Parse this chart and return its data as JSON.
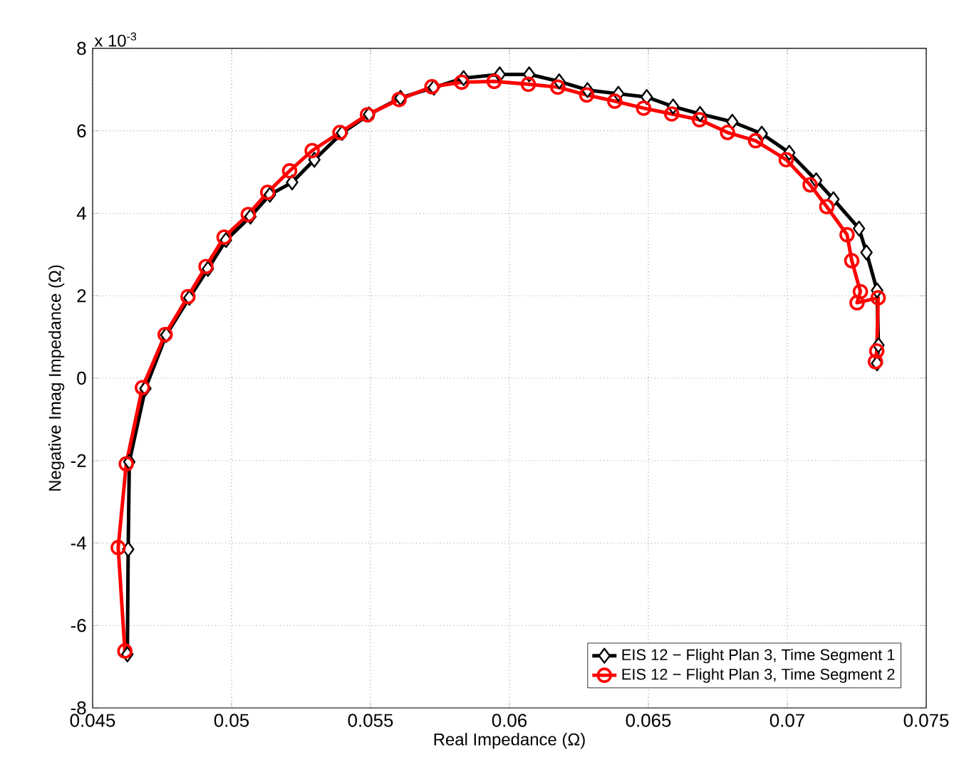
{
  "chart_data": {
    "type": "line",
    "xlabel": "Real Impedance (Ω)",
    "ylabel": "Negative Imag Impedance (Ω)",
    "annotations": [
      "x 10$^{-3}$"
    ],
    "xlim": [
      0.045,
      0.075
    ],
    "ylim": [
      -8,
      8
    ],
    "xticks": [
      0.045,
      0.05,
      0.055,
      0.06,
      0.065,
      0.07,
      0.075
    ],
    "yticks": [
      -8,
      -6,
      -4,
      -2,
      0,
      2,
      4,
      6,
      8
    ],
    "grid": true,
    "legend": "bottom right",
    "line_style": "solid",
    "series": [
      {
        "name": "EIS 12 − Flight Plan 3, Time Segment 1",
        "color": "#000000",
        "marker": "diamond",
        "x": [
          0.04625,
          0.04628,
          0.04632,
          0.0469,
          0.04765,
          0.04848,
          0.04915,
          0.0498,
          0.05068,
          0.05138,
          0.05218,
          0.05298,
          0.05398,
          0.05495,
          0.05608,
          0.05728,
          0.05835,
          0.05965,
          0.06071,
          0.06179,
          0.06281,
          0.06392,
          0.06494,
          0.06589,
          0.06686,
          0.06802,
          0.06908,
          0.07007,
          0.07104,
          0.07166,
          0.07258,
          0.07285,
          0.07323,
          0.07328,
          0.07323
        ],
        "values": [
          -6.7,
          -4.15,
          -2.03,
          -0.25,
          1.05,
          1.95,
          2.65,
          3.35,
          3.92,
          4.45,
          4.75,
          5.3,
          5.95,
          6.4,
          6.8,
          7.05,
          7.28,
          7.37,
          7.37,
          7.2,
          6.99,
          6.9,
          6.82,
          6.59,
          6.41,
          6.22,
          5.93,
          5.47,
          4.8,
          4.34,
          3.63,
          3.05,
          2.13,
          0.8,
          0.36
        ]
      },
      {
        "name": "EIS 12 − Flight Plan 3, Time Segment 2",
        "color": "#ff0000",
        "marker": "circle",
        "x": [
          0.04616,
          0.04592,
          0.04621,
          0.04679,
          0.04761,
          0.04843,
          0.04908,
          0.04973,
          0.0506,
          0.0513,
          0.05209,
          0.0529,
          0.0539,
          0.05489,
          0.05603,
          0.05721,
          0.05828,
          0.05945,
          0.06068,
          0.06174,
          0.06278,
          0.06379,
          0.06483,
          0.06584,
          0.06684,
          0.06785,
          0.06886,
          0.06996,
          0.07082,
          0.07142,
          0.07215,
          0.07232,
          0.07263,
          0.07251,
          0.07327,
          0.07322,
          0.07317
        ],
        "values": [
          -6.62,
          -4.11,
          -2.08,
          -0.23,
          1.06,
          1.98,
          2.71,
          3.42,
          3.97,
          4.51,
          5.03,
          5.52,
          5.96,
          6.39,
          6.76,
          7.07,
          7.18,
          7.2,
          7.13,
          7.06,
          6.87,
          6.72,
          6.55,
          6.41,
          6.27,
          5.96,
          5.76,
          5.3,
          4.69,
          4.16,
          3.48,
          2.85,
          2.1,
          1.83,
          1.95,
          0.66,
          0.4
        ]
      }
    ]
  }
}
